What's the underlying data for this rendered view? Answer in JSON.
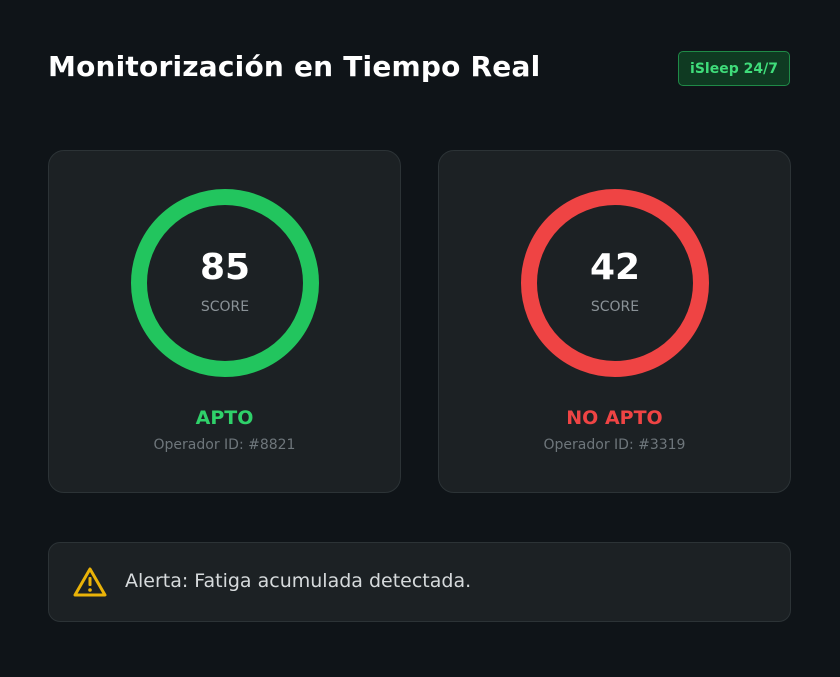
{
  "header": {
    "title": "Monitorización en Tiempo Real",
    "badge": "iSleep 24/7"
  },
  "cards": [
    {
      "score": "85",
      "score_label": "SCORE",
      "status": "APTO",
      "operator": "Operador ID: #8821",
      "ring_color": "#22c55e",
      "status_color": "#2fd16a"
    },
    {
      "score": "42",
      "score_label": "SCORE",
      "status": "NO APTO",
      "operator": "Operador ID: #3319",
      "ring_color": "#ef4444",
      "status_color": "#ef4444"
    }
  ],
  "alert": {
    "text": "Alerta: Fatiga acumulada detectada.",
    "icon": "warning-icon",
    "icon_color": "#eab308"
  },
  "colors": {
    "background": "#0f1418",
    "card": "#1c2124",
    "brand_green": "#3fdc7a"
  }
}
